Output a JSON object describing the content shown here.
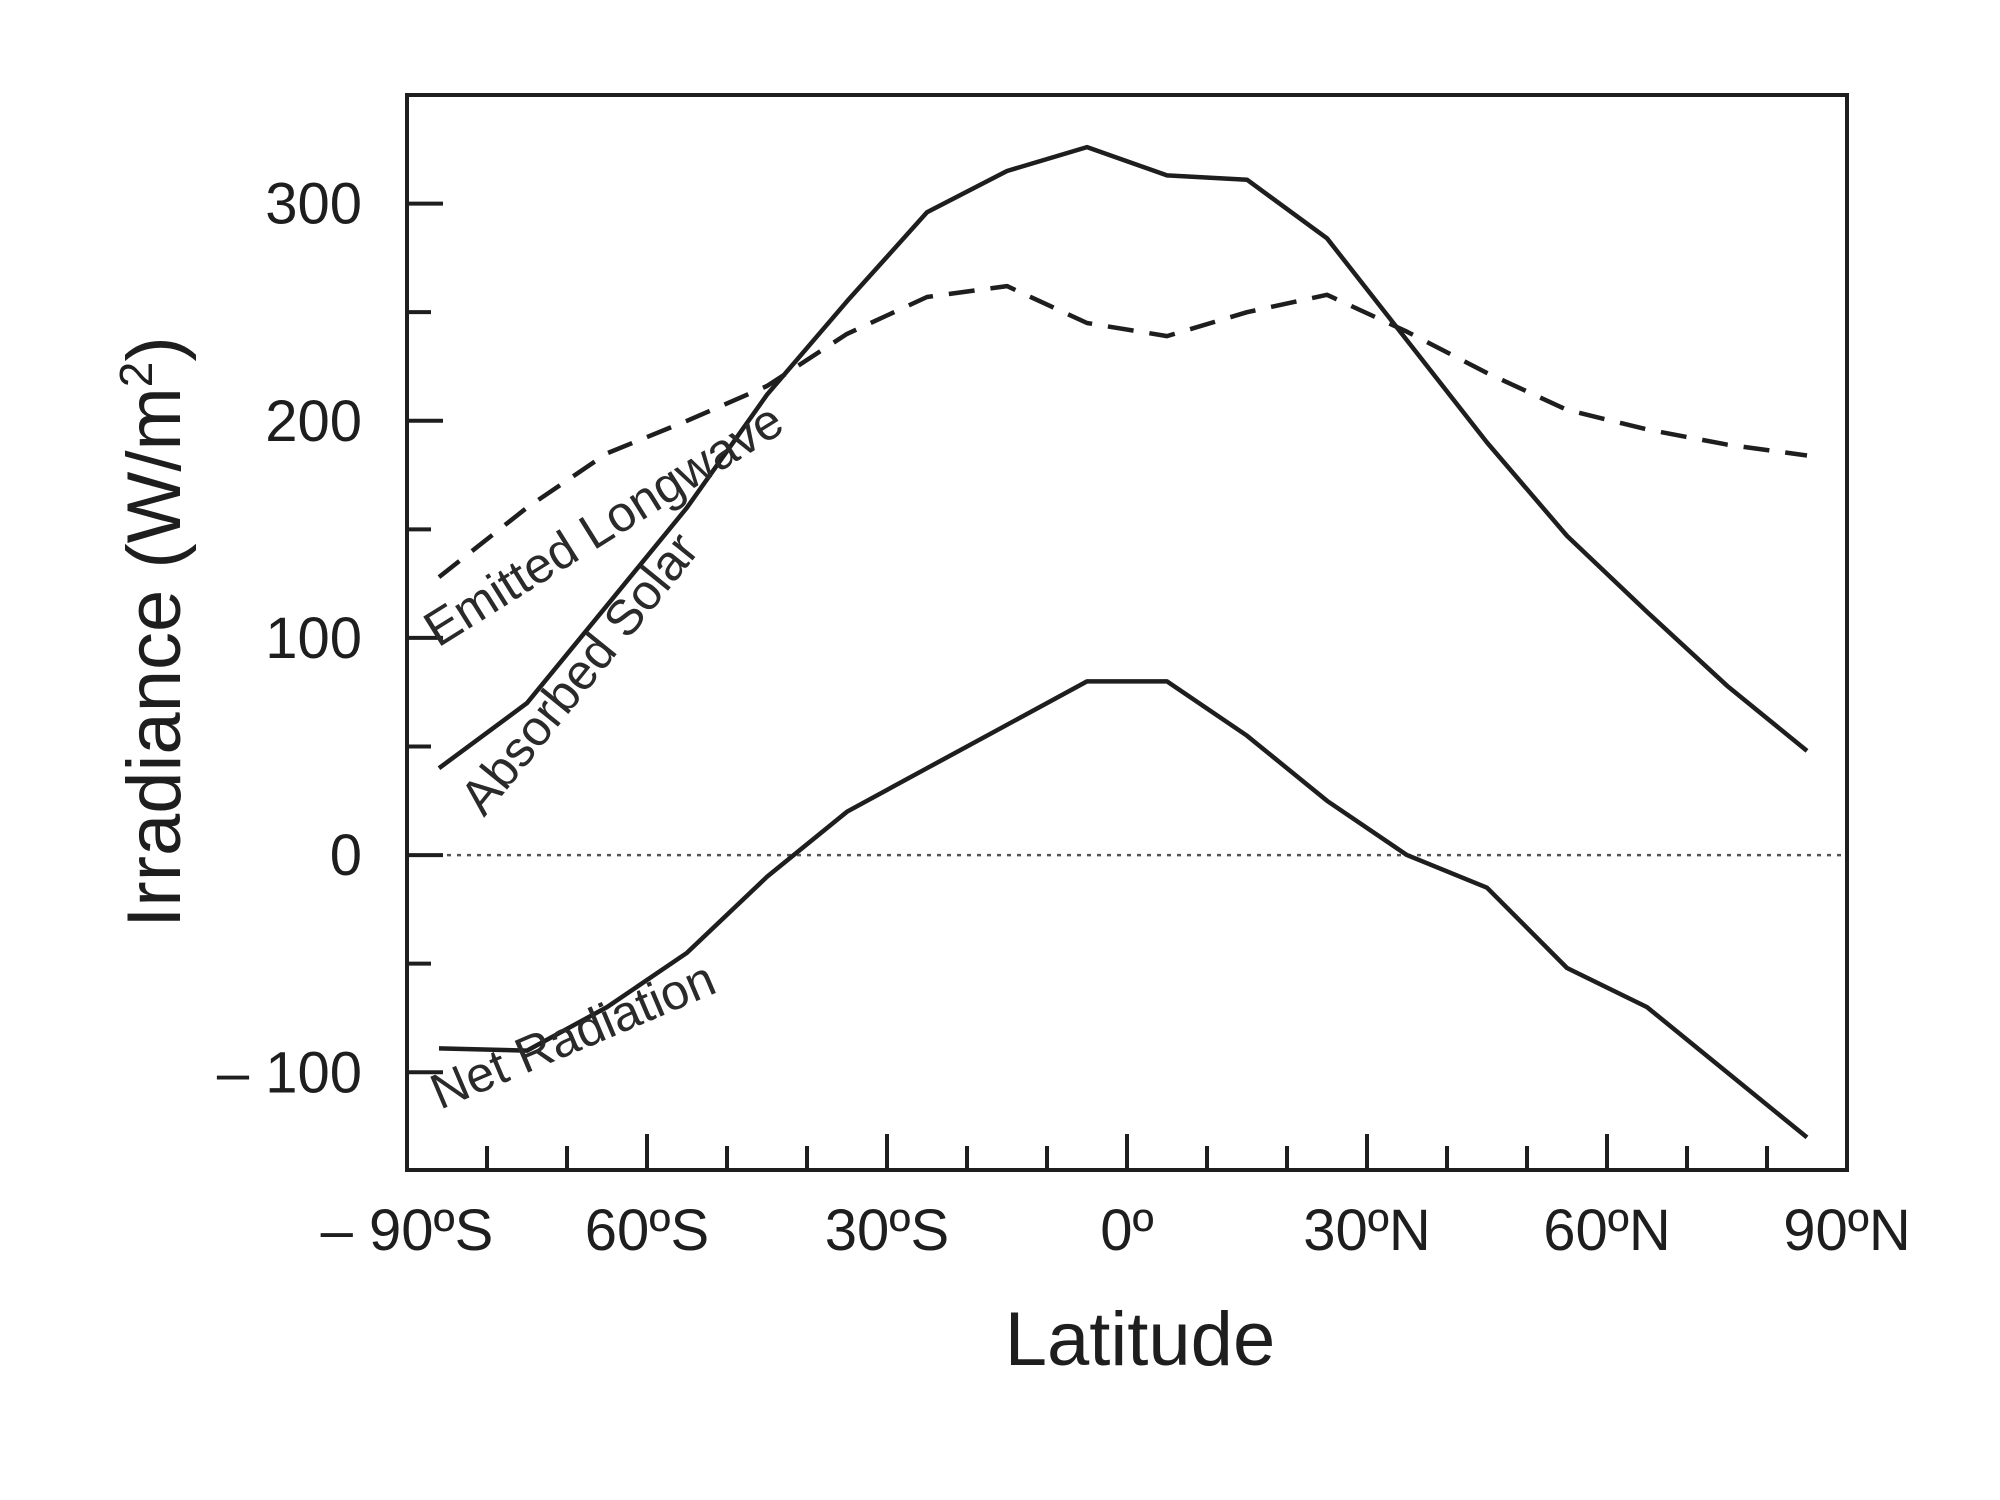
{
  "chart_data": {
    "type": "line",
    "title": "",
    "xlabel": "Latitude",
    "ylabel": "Irradiance  (W/m",
    "ylabel_sup": "2",
    "ylabel_close": ")",
    "xlim": [
      -90,
      90
    ],
    "ylim": [
      -145,
      350
    ],
    "x_ticks": [
      {
        "value": -90,
        "label": "– 90ºS"
      },
      {
        "value": -60,
        "label": "60ºS"
      },
      {
        "value": -30,
        "label": "30ºS"
      },
      {
        "value": 0,
        "label": "0º"
      },
      {
        "value": 30,
        "label": "30ºN"
      },
      {
        "value": 60,
        "label": "60ºN"
      },
      {
        "value": 90,
        "label": "90ºN"
      }
    ],
    "y_ticks": [
      {
        "value": 300,
        "label": "300"
      },
      {
        "value": 200,
        "label": "200"
      },
      {
        "value": 100,
        "label": "100"
      },
      {
        "value": 0,
        "label": "0"
      },
      {
        "value": -100,
        "label": "– 100"
      }
    ],
    "grid": false,
    "zero_line": true,
    "series": [
      {
        "name": "Emitted  Longwave",
        "style": "dashed",
        "x": [
          -86,
          -75,
          -65,
          -55,
          -45,
          -35,
          -25,
          -15,
          -5,
          5,
          15,
          25,
          35,
          45,
          55,
          65,
          75,
          85
        ],
        "y": [
          128,
          160,
          185,
          200,
          216,
          240,
          257,
          262,
          245,
          239,
          250,
          258,
          241,
          222,
          205,
          196,
          189,
          184
        ]
      },
      {
        "name": "Absorbed Solar",
        "style": "solid",
        "x": [
          -86,
          -75,
          -65,
          -55,
          -45,
          -35,
          -25,
          -15,
          -5,
          5,
          15,
          25,
          35,
          45,
          55,
          65,
          75,
          85
        ],
        "y": [
          40,
          70,
          115,
          160,
          212,
          255,
          296,
          315,
          326,
          313,
          311,
          284,
          237,
          190,
          147,
          112,
          78,
          48
        ]
      },
      {
        "name": "Net  Radiation",
        "style": "solid",
        "x": [
          -86,
          -75,
          -65,
          -55,
          -45,
          -35,
          -25,
          -15,
          -5,
          5,
          15,
          25,
          35,
          45,
          55,
          65,
          75,
          85
        ],
        "y": [
          -89,
          -90,
          -70,
          -45,
          -10,
          20,
          40,
          60,
          80,
          80,
          55,
          25,
          0,
          -15,
          -52,
          -70,
          -100,
          -130
        ]
      }
    ],
    "colors": {
      "line": "#1e1e1e",
      "zero_line": "#555555",
      "background": "#ffffff"
    }
  }
}
